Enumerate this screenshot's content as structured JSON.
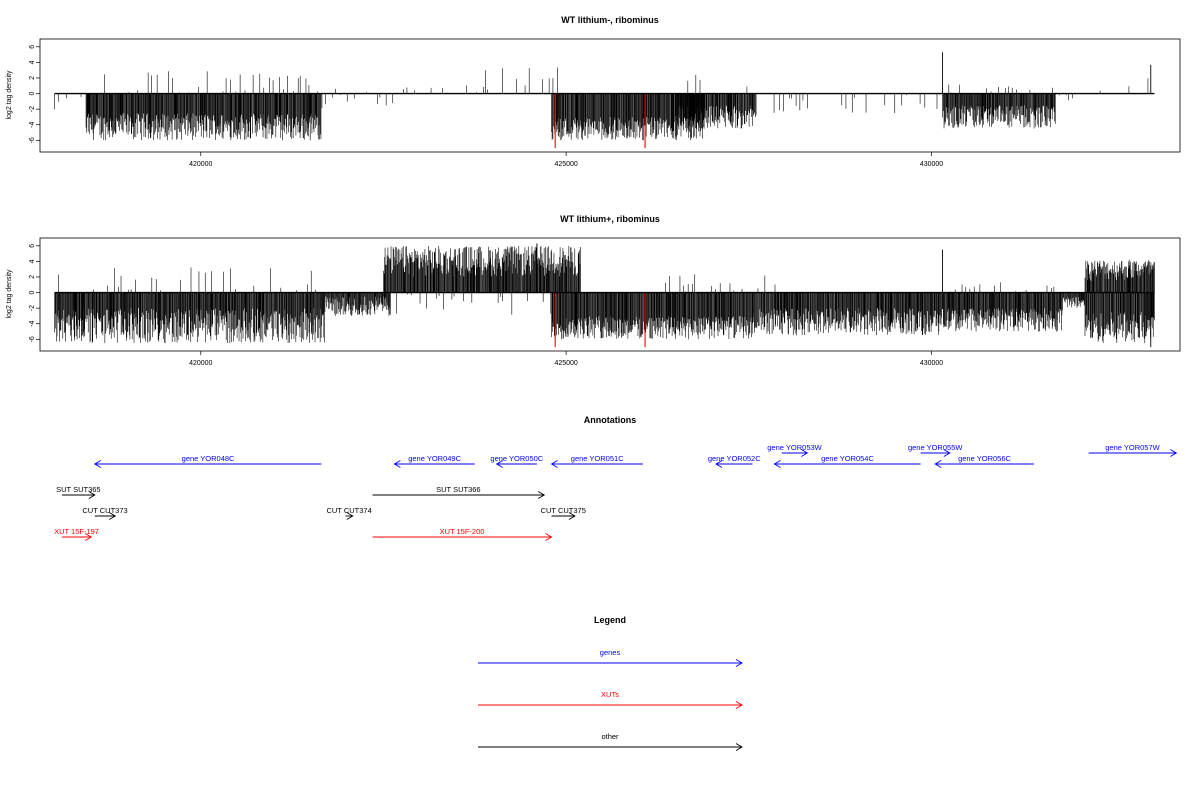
{
  "colors": {
    "gene": "#0000ff",
    "xut": "#ff0000",
    "other": "#000000",
    "signal": "#000000",
    "highlight": "#ff0000"
  },
  "chart_data": [
    {
      "type": "bar",
      "title": "WT lithium-, ribominus",
      "ylabel": "log2 tag density",
      "xlim": [
        417800,
        433400
      ],
      "ylim": [
        -7.5,
        7
      ],
      "x_ticks": [
        420000,
        425000,
        430000
      ],
      "y_ticks": [
        6,
        4,
        2,
        0,
        -2,
        -4,
        -6
      ],
      "highlight_x": [
        424850,
        426080
      ],
      "highlight_value": -7,
      "regions": [
        {
          "start": 418000,
          "end": 418400,
          "mode": "sparse",
          "lo": -2.5,
          "hi": 0
        },
        {
          "start": 418430,
          "end": 421650,
          "mode": "neg",
          "lo": -6,
          "hi": -2.5
        },
        {
          "start": 418500,
          "end": 421600,
          "mode": "sparse",
          "lo": 0,
          "hi": 3
        },
        {
          "start": 421600,
          "end": 422700,
          "mode": "sparse",
          "lo": -2,
          "hi": 1
        },
        {
          "start": 422600,
          "end": 424900,
          "mode": "sparse",
          "lo": 0,
          "hi": 3.5
        },
        {
          "start": 424800,
          "end": 426900,
          "mode": "neg",
          "lo": -6,
          "hi": -3
        },
        {
          "start": 426500,
          "end": 427600,
          "mode": "neg",
          "lo": -4.5,
          "hi": -1.5
        },
        {
          "start": 426500,
          "end": 427800,
          "mode": "sparse",
          "lo": 0,
          "hi": 3.3
        },
        {
          "start": 427800,
          "end": 430100,
          "mode": "sparse",
          "lo": -2.5,
          "hi": 0
        },
        {
          "start": 430150,
          "end": 431700,
          "mode": "neg",
          "lo": -4.5,
          "hi": -1.5
        },
        {
          "start": 430200,
          "end": 431700,
          "mode": "sparse",
          "lo": 0,
          "hi": 1.5
        },
        {
          "start": 431700,
          "end": 432000,
          "mode": "sparse",
          "lo": -1,
          "hi": 0
        },
        {
          "start": 432050,
          "end": 433000,
          "mode": "sparse",
          "lo": 0,
          "hi": 3.8
        }
      ],
      "peaks": [
        {
          "x": 430150,
          "value": 5.3
        },
        {
          "x": 433000,
          "value": 3.7
        }
      ]
    },
    {
      "type": "bar",
      "title": "WT lithium+, ribominus",
      "ylabel": "log2 tag density",
      "xlim": [
        417800,
        433400
      ],
      "ylim": [
        -7.5,
        7
      ],
      "x_ticks": [
        420000,
        425000,
        430000
      ],
      "y_ticks": [
        6,
        4,
        2,
        0,
        -2,
        -4,
        -6
      ],
      "highlight_x": [
        424850,
        426080
      ],
      "highlight_value": -7,
      "regions": [
        {
          "start": 418000,
          "end": 421700,
          "mode": "neg",
          "lo": -6.5,
          "hi": -2
        },
        {
          "start": 418000,
          "end": 421700,
          "mode": "sparse",
          "lo": 0,
          "hi": 3.5
        },
        {
          "start": 421700,
          "end": 422600,
          "mode": "neg",
          "lo": -3,
          "hi": -0.5
        },
        {
          "start": 422500,
          "end": 425200,
          "mode": "pos",
          "lo": 2,
          "hi": 6
        },
        {
          "start": 422600,
          "end": 425000,
          "mode": "sparse",
          "lo": -3,
          "hi": 0
        },
        {
          "start": 424800,
          "end": 427600,
          "mode": "neg",
          "lo": -6,
          "hi": -3
        },
        {
          "start": 426300,
          "end": 427900,
          "mode": "sparse",
          "lo": 0,
          "hi": 3
        },
        {
          "start": 427600,
          "end": 430100,
          "mode": "neg",
          "lo": -5.5,
          "hi": -2
        },
        {
          "start": 430100,
          "end": 431800,
          "mode": "neg",
          "lo": -5,
          "hi": -2
        },
        {
          "start": 430200,
          "end": 431800,
          "mode": "sparse",
          "lo": 0,
          "hi": 1.5
        },
        {
          "start": 431800,
          "end": 432100,
          "mode": "neg",
          "lo": -2,
          "hi": -0.5
        },
        {
          "start": 432100,
          "end": 433050,
          "mode": "pos",
          "lo": 1.5,
          "hi": 4.3
        },
        {
          "start": 432100,
          "end": 433050,
          "mode": "neg",
          "lo": -6.5,
          "hi": -2.5
        }
      ],
      "peaks": [
        {
          "x": 424600,
          "value": 6.3
        },
        {
          "x": 430150,
          "value": 5.5
        },
        {
          "x": 433000,
          "value": -7
        }
      ]
    }
  ],
  "annotations": {
    "title": "Annotations",
    "items": [
      {
        "label": "gene YOR048C",
        "start": 421650,
        "end": 418550,
        "kind": "gene",
        "row": 1
      },
      {
        "label": "gene YOR049C",
        "start": 423750,
        "end": 422650,
        "kind": "gene",
        "row": 1
      },
      {
        "label": "gene YOR050C",
        "start": 424600,
        "end": 424050,
        "kind": "gene",
        "row": 1
      },
      {
        "label": "gene YOR051C",
        "start": 426050,
        "end": 424800,
        "kind": "gene",
        "row": 1
      },
      {
        "label": "gene YOR052C",
        "start": 427550,
        "end": 427050,
        "kind": "gene",
        "row": 1
      },
      {
        "label": "gene YOR053W",
        "start": 427950,
        "end": 428300,
        "kind": "gene",
        "row": 0
      },
      {
        "label": "gene YOR054C",
        "start": 429850,
        "end": 427850,
        "kind": "gene",
        "row": 1
      },
      {
        "label": "gene YOR055W",
        "start": 429850,
        "end": 430250,
        "kind": "gene",
        "row": 0
      },
      {
        "label": "gene YOR056C",
        "start": 431400,
        "end": 430050,
        "kind": "gene",
        "row": 1
      },
      {
        "label": "gene YOR057W",
        "start": 432150,
        "end": 433350,
        "kind": "gene",
        "row": 0
      },
      {
        "label": "SUT SUT365",
        "start": 418100,
        "end": 418550,
        "kind": "other",
        "row": 2
      },
      {
        "label": "SUT SUT366",
        "start": 422350,
        "end": 424700,
        "kind": "other",
        "row": 2
      },
      {
        "label": "CUT CUT373",
        "start": 418550,
        "end": 418830,
        "kind": "other",
        "row": 3
      },
      {
        "label": "CUT CUT374",
        "start": 421980,
        "end": 422080,
        "kind": "other",
        "row": 3
      },
      {
        "label": "CUT CUT375",
        "start": 424800,
        "end": 425120,
        "kind": "other",
        "row": 3
      },
      {
        "label": "XUT 15F-197",
        "start": 418100,
        "end": 418500,
        "kind": "xut",
        "row": 4
      },
      {
        "label": "XUT 15F-200",
        "start": 422350,
        "end": 424800,
        "kind": "xut",
        "row": 4
      }
    ]
  },
  "legend": {
    "title": "Legend",
    "items": [
      {
        "label": "genes",
        "kind": "gene"
      },
      {
        "label": "XUTs",
        "kind": "xut"
      },
      {
        "label": "other",
        "kind": "other"
      }
    ]
  }
}
